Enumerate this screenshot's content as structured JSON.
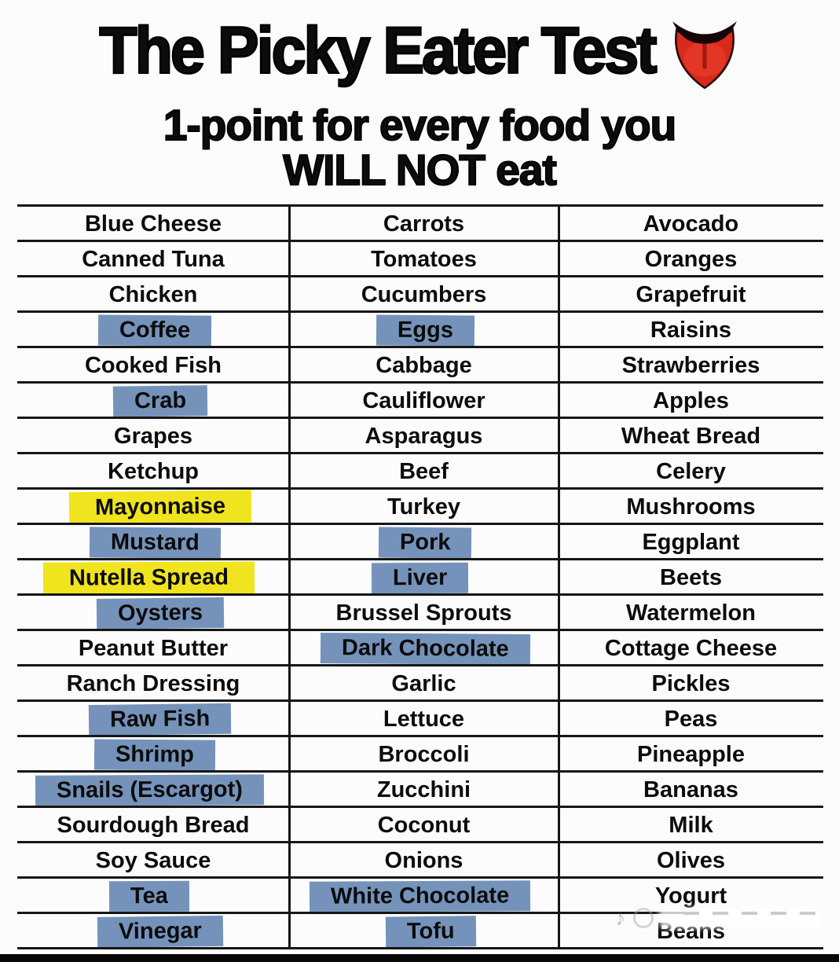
{
  "header": {
    "title": "The Picky Eater Test",
    "subtitle_line1": "1-point for every food you",
    "subtitle_line2": "WILL NOT eat"
  },
  "colors": {
    "highlight_blue": "#7593ba",
    "highlight_yellow": "#f0e41e",
    "line_black": "#161616",
    "tongue_red": "#d8291b"
  },
  "watermark": {
    "note_glyph": "♪"
  },
  "table": {
    "columns": [
      {
        "items": [
          {
            "label": "Blue Cheese",
            "hl": "none"
          },
          {
            "label": "Canned Tuna",
            "hl": "none"
          },
          {
            "label": "Chicken",
            "hl": "none"
          },
          {
            "label": "Coffee",
            "hl": "blue"
          },
          {
            "label": "Cooked Fish",
            "hl": "none"
          },
          {
            "label": "Crab",
            "hl": "blue"
          },
          {
            "label": "Grapes",
            "hl": "none"
          },
          {
            "label": "Ketchup",
            "hl": "none"
          },
          {
            "label": "Mayonnaise",
            "hl": "yellow"
          },
          {
            "label": "Mustard",
            "hl": "blue"
          },
          {
            "label": "Nutella Spread",
            "hl": "yellow"
          },
          {
            "label": "Oysters",
            "hl": "blue"
          },
          {
            "label": "Peanut Butter",
            "hl": "none"
          },
          {
            "label": "Ranch Dressing",
            "hl": "none"
          },
          {
            "label": "Raw Fish",
            "hl": "blue"
          },
          {
            "label": "Shrimp",
            "hl": "blue"
          },
          {
            "label": "Snails (Escargot)",
            "hl": "blue"
          },
          {
            "label": "Sourdough Bread",
            "hl": "none"
          },
          {
            "label": "Soy Sauce",
            "hl": "none"
          },
          {
            "label": "Tea",
            "hl": "blue"
          },
          {
            "label": "Vinegar",
            "hl": "blue"
          }
        ]
      },
      {
        "items": [
          {
            "label": "Carrots",
            "hl": "none"
          },
          {
            "label": "Tomatoes",
            "hl": "none"
          },
          {
            "label": "Cucumbers",
            "hl": "none"
          },
          {
            "label": "Eggs",
            "hl": "blue"
          },
          {
            "label": "Cabbage",
            "hl": "none"
          },
          {
            "label": "Cauliflower",
            "hl": "none"
          },
          {
            "label": "Asparagus",
            "hl": "none"
          },
          {
            "label": "Beef",
            "hl": "none"
          },
          {
            "label": "Turkey",
            "hl": "none"
          },
          {
            "label": "Pork",
            "hl": "blue"
          },
          {
            "label": "Liver",
            "hl": "blue"
          },
          {
            "label": "Brussel Sprouts",
            "hl": "none"
          },
          {
            "label": "Dark Chocolate",
            "hl": "blue"
          },
          {
            "label": "Garlic",
            "hl": "none"
          },
          {
            "label": "Lettuce",
            "hl": "none"
          },
          {
            "label": "Broccoli",
            "hl": "none"
          },
          {
            "label": "Zucchini",
            "hl": "none"
          },
          {
            "label": "Coconut",
            "hl": "none"
          },
          {
            "label": "Onions",
            "hl": "none"
          },
          {
            "label": "White Chocolate",
            "hl": "blue"
          },
          {
            "label": "Tofu",
            "hl": "blue"
          }
        ]
      },
      {
        "items": [
          {
            "label": "Avocado",
            "hl": "none"
          },
          {
            "label": "Oranges",
            "hl": "none"
          },
          {
            "label": "Grapefruit",
            "hl": "none"
          },
          {
            "label": "Raisins",
            "hl": "none"
          },
          {
            "label": "Strawberries",
            "hl": "none"
          },
          {
            "label": "Apples",
            "hl": "none"
          },
          {
            "label": "Wheat Bread",
            "hl": "none"
          },
          {
            "label": "Celery",
            "hl": "none"
          },
          {
            "label": "Mushrooms",
            "hl": "none"
          },
          {
            "label": "Eggplant",
            "hl": "none"
          },
          {
            "label": "Beets",
            "hl": "none"
          },
          {
            "label": "Watermelon",
            "hl": "none"
          },
          {
            "label": "Cottage Cheese",
            "hl": "none"
          },
          {
            "label": "Pickles",
            "hl": "none"
          },
          {
            "label": "Peas",
            "hl": "none"
          },
          {
            "label": "Pineapple",
            "hl": "none"
          },
          {
            "label": "Bananas",
            "hl": "none"
          },
          {
            "label": "Milk",
            "hl": "none"
          },
          {
            "label": "Olives",
            "hl": "none"
          },
          {
            "label": "Yogurt",
            "hl": "none"
          },
          {
            "label": "Beans",
            "hl": "none"
          }
        ]
      }
    ]
  }
}
